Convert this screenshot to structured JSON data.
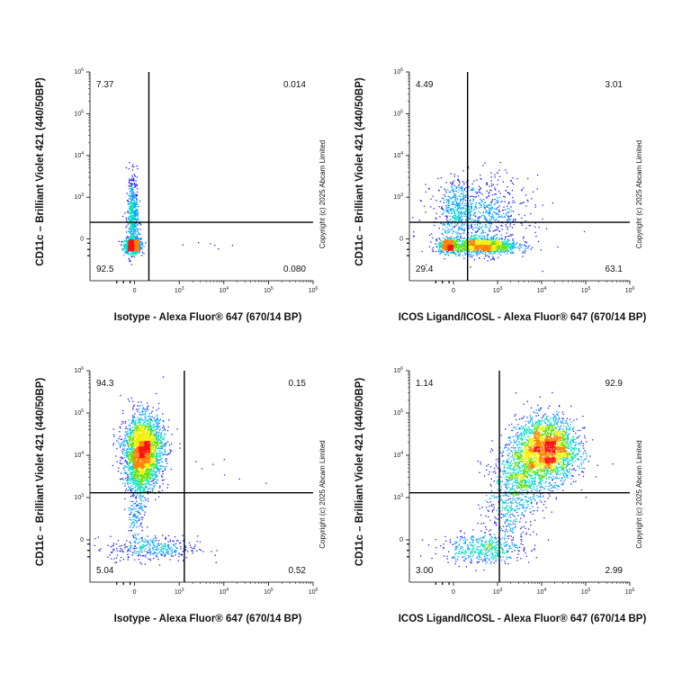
{
  "chart_data": [
    {
      "type": "scatter",
      "subtype": "flow-cytometry-density-dot-plot",
      "xlabel": "Isotype - Alexa Fluor® 647 (670/14 BP)",
      "ylabel": "CD11c – Brilliant Violet 421 (440/50BP)",
      "axis_scale": "biexponential",
      "x_ticks": [
        "0",
        "10^3",
        "10^4",
        "10^5",
        "10^6"
      ],
      "y_ticks": [
        "0",
        "10^3",
        "10^4",
        "10^5",
        "10^6"
      ],
      "gate_x": 320,
      "gate_y": 400,
      "quadrants": {
        "top_left": "7.37",
        "top_right": "0.014",
        "bottom_left": "92.5",
        "bottom_right": "0.080"
      },
      "copyright": "Copyright (c) 2025 Abcam Limited"
    },
    {
      "type": "scatter",
      "subtype": "flow-cytometry-density-dot-plot",
      "xlabel": "ICOS Ligand/ICOSL - Alexa Fluor® 647 (670/14 BP)",
      "ylabel": "CD11c – Brilliant Violet 421 (440/50BP)",
      "axis_scale": "biexponential",
      "x_ticks": [
        "0",
        "10^3",
        "10^4",
        "10^5",
        "10^6"
      ],
      "y_ticks": [
        "0",
        "10^3",
        "10^4",
        "10^5",
        "10^6"
      ],
      "gate_x": 320,
      "gate_y": 400,
      "quadrants": {
        "top_left": "4.49",
        "top_right": "3.01",
        "bottom_left": "29.4",
        "bottom_right": "63.1"
      },
      "copyright": "Copyright (c) 2025 Abcam Limited"
    },
    {
      "type": "scatter",
      "subtype": "flow-cytometry-density-dot-plot",
      "xlabel": "Isotype - Alexa Fluor® 647 (670/14 BP)",
      "ylabel": "CD11c – Brilliant Violet 421 (440/50BP)",
      "axis_scale": "biexponential",
      "x_ticks": [
        "0",
        "10^3",
        "10^4",
        "10^5",
        "10^6"
      ],
      "y_ticks": [
        "0",
        "10^3",
        "10^4",
        "10^5",
        "10^6"
      ],
      "gate_x": 1300,
      "gate_y": 1300,
      "quadrants": {
        "top_left": "94.3",
        "top_right": "0.15",
        "bottom_left": "5.04",
        "bottom_right": "0.52"
      },
      "copyright": "Copyright (c) 2025 Abcam Limited"
    },
    {
      "type": "scatter",
      "subtype": "flow-cytometry-density-dot-plot",
      "xlabel": "ICOS Ligand/ICOSL - Alexa Fluor® 647 (670/14 BP)",
      "ylabel": "CD11c – Brilliant Violet 421 (440/50BP)",
      "axis_scale": "biexponential",
      "x_ticks": [
        "0",
        "10^3",
        "10^4",
        "10^5",
        "10^6"
      ],
      "y_ticks": [
        "0",
        "10^3",
        "10^4",
        "10^5",
        "10^6"
      ],
      "gate_x": 1100,
      "gate_y": 1300,
      "quadrants": {
        "top_left": "1.14",
        "top_right": "92.9",
        "bottom_left": "3.00",
        "bottom_right": "2.99"
      },
      "copyright": "Copyright (c) 2025 Abcam Limited"
    }
  ],
  "colors": {
    "density_scale": [
      "#1a1aff",
      "#00a0ff",
      "#00e0c0",
      "#60e000",
      "#f0f000",
      "#ff8000",
      "#ff1010"
    ],
    "gate_line": "#000000",
    "axis": "#000000"
  }
}
